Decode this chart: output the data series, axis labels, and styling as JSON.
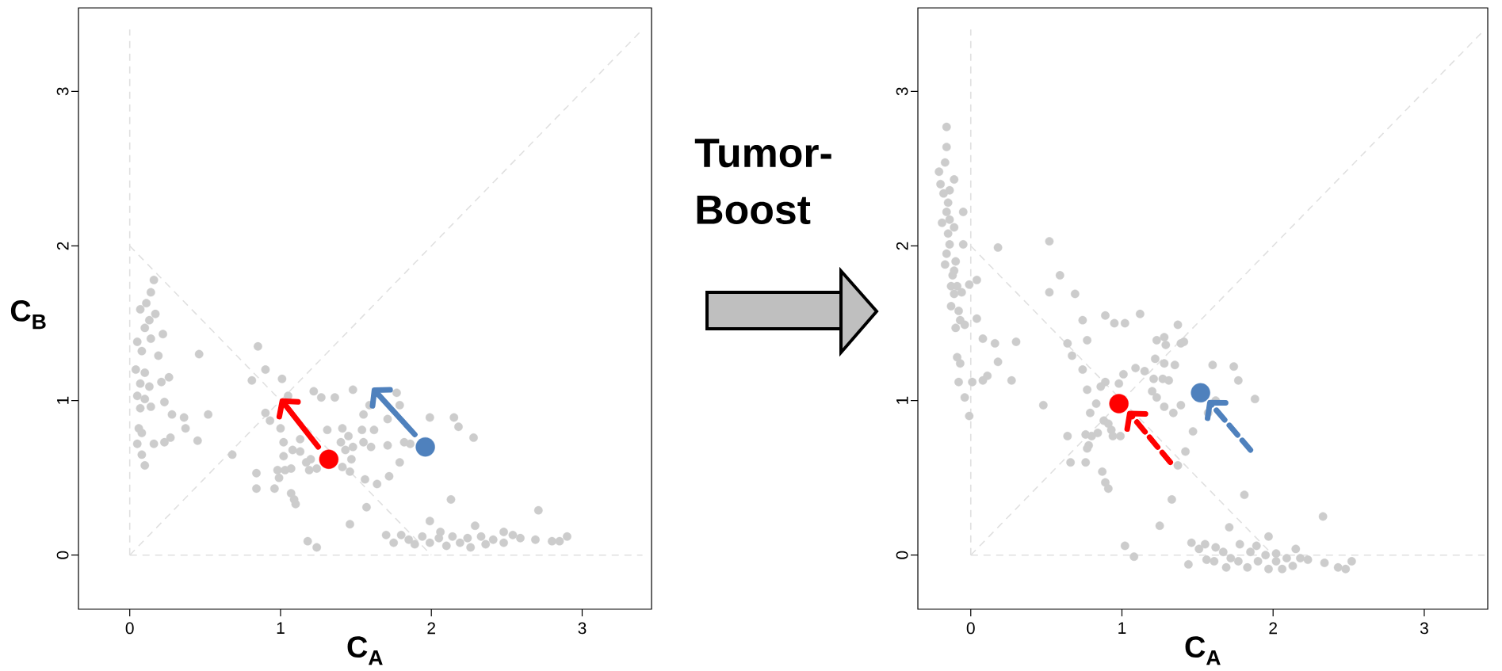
{
  "chart_data": [
    {
      "type": "scatter",
      "xlabel": "**C$_{A}$**",
      "ylabel": "**C$_{B}$**",
      "xlim": [
        -0.34,
        3.46
      ],
      "ylim": [
        -0.35,
        3.54
      ],
      "xticks": [
        0,
        1,
        2,
        3
      ],
      "yticks": [
        0,
        1,
        2,
        3
      ],
      "series": [
        {
          "type": "line",
          "color": "#e0e0e0",
          "line_style": "dashed",
          "marker": "none",
          "x": [
            0,
            0
          ],
          "values": [
            0,
            3.4
          ]
        },
        {
          "type": "line",
          "color": "#e0e0e0",
          "line_style": "dashed",
          "marker": "none",
          "x": [
            0,
            3.4
          ],
          "values": [
            0,
            0
          ]
        },
        {
          "type": "line",
          "color": "#e0e0e0",
          "line_style": "dashed",
          "marker": "none",
          "x": [
            0,
            3.4
          ],
          "values": [
            0,
            3.4
          ]
        },
        {
          "type": "line",
          "color": "#e0e0e0",
          "line_style": "dashed",
          "marker": "none",
          "x": [
            0,
            2
          ],
          "values": [
            2,
            0
          ]
        },
        {
          "type": "scatter",
          "color": "#cccccc",
          "marker": "circle",
          "x": [
            0.16,
            0.14,
            0.11,
            0.07,
            0.17,
            0.13,
            0.22,
            0.1,
            0.05,
            0.14,
            0.08,
            0.19,
            0.46,
            0.04,
            0.1,
            0.26,
            0.21,
            0.07,
            0.13,
            0.05,
            0.1,
            0.23,
            0.07,
            0.14,
            0.28,
            0.36,
            0.52,
            0.37,
            0.06,
            0.08,
            0.27,
            0.23,
            0.16,
            0.05,
            0.45,
            0.08,
            0.1,
            0.68,
            0.85,
            0.9,
            0.81,
            1.01,
            1.05,
            1.22,
            1.27,
            1.36,
            1.48,
            0.9,
            0.93,
            1.0,
            1.31,
            1.02,
            1.13,
            1.08,
            1.02,
            1.13,
            1.17,
            1.2,
            1.19,
            1.24,
            1.07,
            0.98,
            1.03,
            0.84,
            0.99,
            0.96,
            0.84,
            1.07,
            1.09,
            1.1,
            1.41,
            1.45,
            1.4,
            1.48,
            1.43,
            1.47,
            1.41,
            1.46,
            1.55,
            1.59,
            1.54,
            1.55,
            1.6,
            1.62,
            1.56,
            1.57,
            1.46,
            1.18,
            1.24,
            1.64,
            1.77,
            1.79,
            1.71,
            1.99,
            2.15,
            2.18,
            2.28,
            1.82,
            1.86,
            1.71,
            1.79,
            1.72,
            2.13,
            2.71,
            1.99,
            2.29,
            2.06,
            1.7,
            1.75,
            1.8,
            1.85,
            1.89,
            1.94,
            1.99,
            2.05,
            2.1,
            2.14,
            2.19,
            2.24,
            2.26,
            2.33,
            2.36,
            2.41,
            2.48,
            2.48,
            2.54,
            2.59,
            2.69,
            2.8,
            2.85,
            2.9
          ],
          "values": [
            1.78,
            1.7,
            1.63,
            1.59,
            1.56,
            1.52,
            1.43,
            1.47,
            1.38,
            1.4,
            1.32,
            1.29,
            1.3,
            1.2,
            1.18,
            1.15,
            1.12,
            1.11,
            1.09,
            1.03,
            1.01,
            0.99,
            0.95,
            0.96,
            0.91,
            0.89,
            0.91,
            0.82,
            0.82,
            0.79,
            0.76,
            0.73,
            0.72,
            0.72,
            0.74,
            0.65,
            0.58,
            0.65,
            1.35,
            1.2,
            1.13,
            1.14,
            1.03,
            1.06,
            1.02,
            1.02,
            1.07,
            0.92,
            0.87,
            0.82,
            0.81,
            0.73,
            0.75,
            0.68,
            0.64,
            0.67,
            0.6,
            0.62,
            0.55,
            0.56,
            0.56,
            0.55,
            0.55,
            0.53,
            0.5,
            0.43,
            0.43,
            0.4,
            0.36,
            0.33,
            0.82,
            0.77,
            0.73,
            0.7,
            0.68,
            0.62,
            0.57,
            0.54,
            0.91,
            0.97,
            0.81,
            0.73,
            0.7,
            0.81,
            0.49,
            0.31,
            0.2,
            0.09,
            0.05,
            0.46,
            1.05,
            0.97,
            0.88,
            0.89,
            0.89,
            0.83,
            0.76,
            0.73,
            0.72,
            0.71,
            0.6,
            0.51,
            0.36,
            0.29,
            0.22,
            0.19,
            0.15,
            0.13,
            0.08,
            0.13,
            0.1,
            0.07,
            0.12,
            0.08,
            0.11,
            0.06,
            0.12,
            0.08,
            0.11,
            0.05,
            0.12,
            0.07,
            0.1,
            0.15,
            0.08,
            0.13,
            0.11,
            0.1,
            0.09,
            0.09,
            0.12
          ]
        },
        {
          "type": "scatter",
          "color": "#ff0000",
          "marker": "circle",
          "x": [
            1.32
          ],
          "values": [
            0.62
          ]
        },
        {
          "type": "scatter",
          "color": "#4f81bd",
          "marker": "circle",
          "x": [
            1.96
          ],
          "values": [
            0.7
          ]
        }
      ]
    },
    {
      "type": "other",
      "annotations": [
        "**Tumor-Boost**"
      ]
    },
    {
      "type": "scatter",
      "xlabel": "**C$_{A}$**",
      "xlim": [
        -0.35,
        3.42
      ],
      "ylim": [
        -0.35,
        3.54
      ],
      "xticks": [
        0,
        1,
        2,
        3
      ],
      "yticks": [
        0,
        1,
        2,
        3
      ],
      "series": [
        {
          "type": "line",
          "color": "#e0e0e0",
          "line_style": "dashed",
          "marker": "none",
          "x": [
            0,
            0
          ],
          "values": [
            0,
            3.4
          ]
        },
        {
          "type": "line",
          "color": "#e0e0e0",
          "line_style": "dashed",
          "marker": "none",
          "x": [
            0,
            3.4
          ],
          "values": [
            0,
            0
          ]
        },
        {
          "type": "line",
          "color": "#e0e0e0",
          "line_style": "dashed",
          "marker": "none",
          "x": [
            0,
            3.4
          ],
          "values": [
            0,
            3.4
          ]
        },
        {
          "type": "line",
          "color": "#e0e0e0",
          "line_style": "dashed",
          "marker": "none",
          "x": [
            0,
            2
          ],
          "values": [
            2,
            0
          ]
        },
        {
          "type": "scatter",
          "color": "#cccccc",
          "marker": "circle",
          "x": [
            -0.16,
            -0.16,
            -0.17,
            -0.21,
            -0.11,
            -0.2,
            -0.14,
            -0.18,
            -0.15,
            -0.16,
            -0.05,
            -0.19,
            -0.14,
            -0.11,
            -0.15,
            -0.14,
            -0.05,
            0.18,
            0.52,
            -0.16,
            -0.17,
            -0.1,
            -0.11,
            -0.12,
            -0.13,
            -0.09,
            -0.01,
            0.04,
            -0.11,
            -0.06,
            0.59,
            0.52,
            0.69,
            -0.13,
            -0.08,
            0.04,
            -0.07,
            -0.04,
            -0.1,
            0.74,
            0.89,
            0.95,
            1.02,
            1.12,
            0.08,
            0.16,
            0.3,
            0.18,
            0.64,
            0.77,
            0.67,
            0.74,
            -0.09,
            -0.07,
            -0.08,
            0.01,
            0.08,
            0.11,
            0.27,
            -0.04,
            -0.01,
            0.48,
            0.77,
            0.89,
            0.86,
            1.01,
            0.98,
            1.09,
            1.15,
            0.83,
            0.79,
            0.88,
            0.84,
            0.91,
            0.93,
            0.94,
            0.99,
            0.8,
            0.76,
            0.64,
            0.78,
            0.77,
            0.66,
            0.76,
            0.87,
            0.89,
            0.91,
            1.02,
            1.08,
            1.37,
            1.23,
            1.28,
            1.29,
            1.39,
            1.41,
            1.22,
            1.28,
            1.35,
            1.6,
            1.74,
            1.21,
            1.27,
            1.31,
            1.77,
            1.2,
            1.23,
            1.88,
            1.28,
            1.39,
            1.34,
            1.62,
            1.57,
            1.47,
            1.42,
            1.37,
            1.33,
            1.81,
            1.25,
            1.71,
            2.33,
            1.97,
            2.15,
            2.02,
            1.46,
            1.44,
            1.51,
            1.55,
            1.56,
            1.62,
            1.61,
            1.67,
            1.69,
            1.72,
            1.78,
            1.77,
            1.83,
            1.85,
            1.89,
            1.9,
            1.95,
            1.97,
            2.02,
            2.06,
            2.09,
            2.13,
            2.18,
            2.23,
            2.34,
            2.43,
            2.48,
            2.52
          ],
          "values": [
            2.77,
            2.64,
            2.54,
            2.48,
            2.43,
            2.4,
            2.36,
            2.34,
            2.28,
            2.22,
            2.22,
            2.15,
            2.17,
            2.12,
            2.08,
            2.01,
            2.01,
            1.99,
            2.03,
            1.95,
            1.88,
            1.9,
            1.84,
            1.81,
            1.74,
            1.74,
            1.75,
            1.78,
            1.69,
            1.7,
            1.81,
            1.7,
            1.69,
            1.61,
            1.58,
            1.53,
            1.52,
            1.49,
            1.47,
            1.52,
            1.55,
            1.5,
            1.5,
            1.56,
            1.4,
            1.37,
            1.38,
            1.25,
            1.37,
            1.39,
            1.29,
            1.2,
            1.28,
            1.24,
            1.12,
            1.12,
            1.13,
            1.16,
            1.13,
            1.02,
            0.9,
            0.97,
            1.07,
            1.12,
            1.09,
            1.17,
            1.11,
            1.21,
            1.19,
            0.98,
            0.92,
            0.87,
            0.79,
            0.85,
            0.81,
            0.77,
            0.77,
            0.77,
            0.78,
            0.77,
            0.71,
            0.69,
            0.6,
            0.6,
            0.54,
            0.47,
            0.43,
            0.06,
            -0.01,
            1.49,
            1.39,
            1.41,
            1.36,
            1.37,
            1.38,
            1.27,
            1.24,
            1.23,
            1.23,
            1.22,
            1.14,
            1.14,
            1.13,
            1.13,
            1.06,
            1.02,
            1.01,
            0.96,
            0.97,
            0.92,
            1.0,
            0.92,
            0.8,
            0.67,
            0.58,
            0.36,
            0.39,
            0.19,
            0.18,
            0.25,
            0.12,
            0.04,
            0.01,
            0.08,
            -0.06,
            0.04,
            0.07,
            -0.03,
            0.05,
            -0.04,
            0.02,
            -0.08,
            -0.02,
            0.07,
            -0.04,
            -0.08,
            0.02,
            0.06,
            -0.04,
            0.0,
            -0.09,
            -0.04,
            -0.09,
            -0.02,
            -0.07,
            -0.02,
            -0.03,
            -0.05,
            -0.08,
            -0.09,
            -0.04
          ]
        },
        {
          "type": "scatter",
          "color": "#ff0000",
          "marker": "circle",
          "x": [
            0.98
          ],
          "values": [
            0.98
          ]
        },
        {
          "type": "scatter",
          "color": "#4f81bd",
          "marker": "circle",
          "x": [
            1.52
          ],
          "values": [
            1.05
          ]
        }
      ]
    }
  ]
}
